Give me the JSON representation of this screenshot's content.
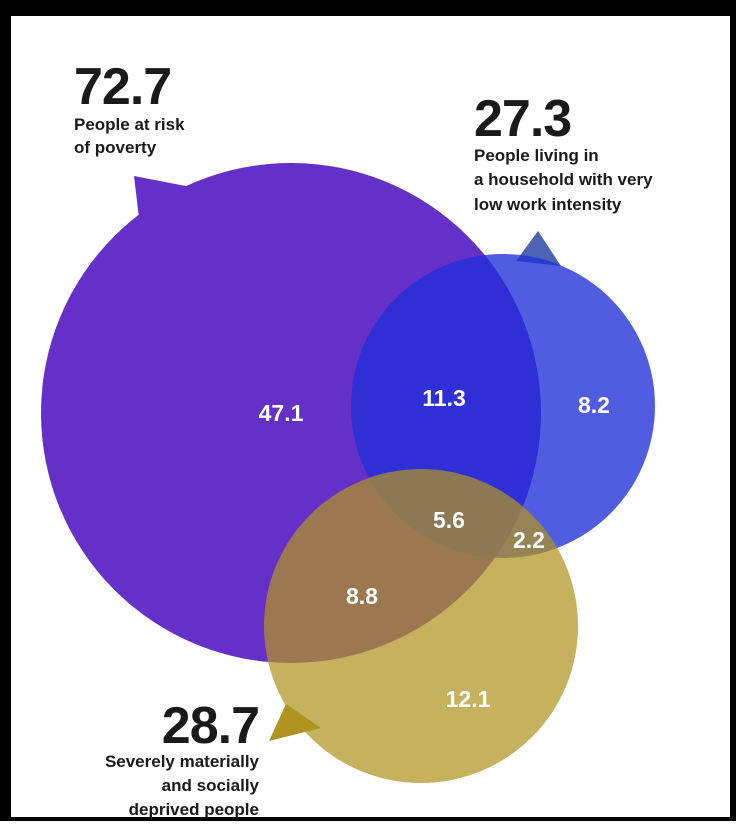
{
  "colors": {
    "poverty": "#6430c8",
    "work_intensity": "#2c46a8",
    "deprived": "#b09420",
    "text_dark": "#1a1a1a",
    "value_text": "#ffffff"
  },
  "sets": {
    "poverty": {
      "total": "72.7",
      "label_lines": [
        "People at risk",
        "of poverty"
      ]
    },
    "work_intensity": {
      "total": "27.3",
      "label_lines": [
        "People living in",
        "a household with very",
        "low work intensity"
      ]
    },
    "deprived": {
      "total": "28.7",
      "label_lines": [
        "Severely materially",
        "and socially",
        "deprived people"
      ]
    }
  },
  "regions": {
    "poverty_only": "47.1",
    "poverty_and_work": "11.3",
    "work_only": "8.2",
    "all_three": "5.6",
    "work_and_deprived": "2.2",
    "poverty_and_deprived": "8.8",
    "deprived_only": "12.1"
  }
}
